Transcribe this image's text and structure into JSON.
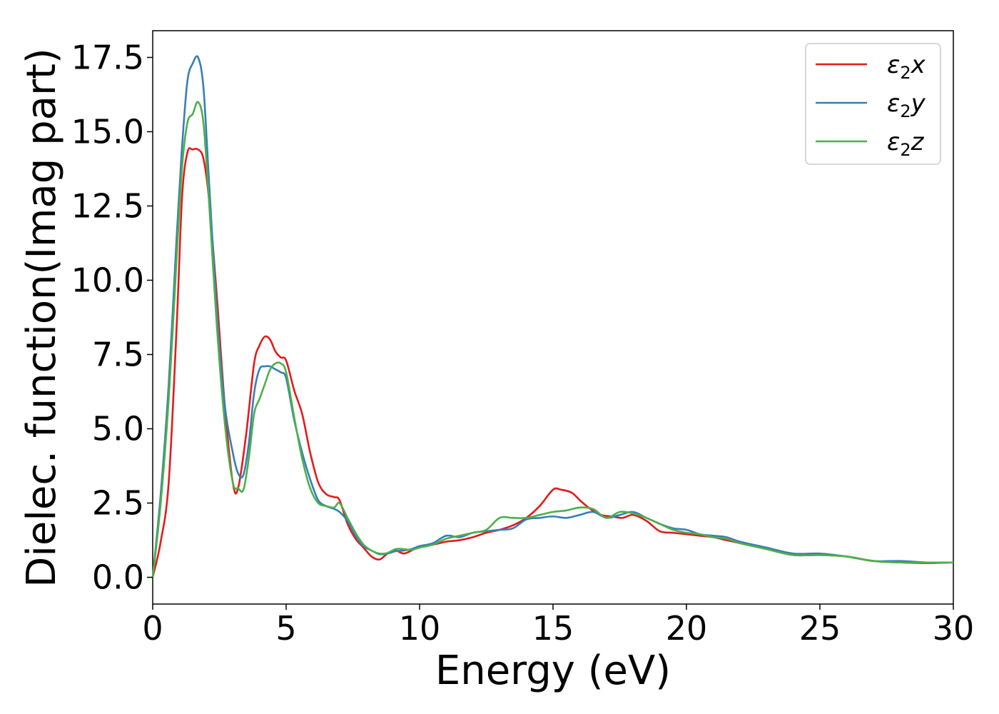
{
  "chart_data": {
    "type": "line",
    "xlabel": "Energy (eV)",
    "ylabel": "Dielec. function(Imag part)",
    "xlim": [
      0,
      30
    ],
    "ylim": [
      -0.9,
      18.4
    ],
    "xticks": [
      0,
      5,
      10,
      15,
      20,
      25,
      30
    ],
    "xtick_labels": [
      "0",
      "5",
      "10",
      "15",
      "20",
      "25",
      "30"
    ],
    "yticks": [
      0,
      2.5,
      5,
      7.5,
      10,
      12.5,
      15,
      17.5
    ],
    "ytick_labels": [
      "0.0",
      "2.5",
      "5.0",
      "7.5",
      "10.0",
      "12.5",
      "15.0",
      "17.5"
    ],
    "grid": false,
    "legend_position": "top-right",
    "series": [
      {
        "name": "ε2x",
        "legend_base": "ε",
        "legend_sub": "2",
        "legend_suffix": "x",
        "color": "#e41a1c",
        "x": [
          0,
          0.3,
          0.6,
          0.9,
          1.1,
          1.3,
          1.5,
          1.7,
          1.9,
          2.1,
          2.4,
          2.7,
          3.0,
          3.2,
          3.5,
          3.8,
          4.0,
          4.2,
          4.4,
          4.6,
          4.8,
          5.0,
          5.3,
          5.6,
          5.9,
          6.2,
          6.5,
          6.8,
          7.0,
          7.3,
          7.6,
          7.9,
          8.2,
          8.5,
          8.8,
          9.1,
          9.4,
          9.7,
          10.0,
          10.5,
          11.0,
          11.5,
          12.0,
          12.5,
          13.0,
          13.5,
          14.0,
          14.5,
          15.0,
          15.3,
          15.7,
          16.0,
          16.4,
          16.8,
          17.2,
          17.6,
          18.0,
          18.5,
          19.0,
          19.5,
          20.0,
          20.5,
          21.0,
          21.5,
          22.0,
          23.0,
          24.0,
          25.0,
          26.0,
          27.0,
          28.0,
          29.0,
          30.0
        ],
        "values": [
          0,
          1.2,
          3.2,
          8.5,
          12.8,
          14.3,
          14.4,
          14.4,
          14.1,
          12.8,
          9.5,
          5.8,
          3.2,
          3.0,
          4.8,
          7.2,
          7.8,
          8.1,
          8.0,
          7.6,
          7.4,
          7.3,
          6.3,
          5.5,
          4.2,
          3.2,
          2.8,
          2.7,
          2.6,
          1.8,
          1.3,
          1.0,
          0.7,
          0.6,
          0.8,
          0.9,
          0.8,
          0.9,
          1.05,
          1.1,
          1.2,
          1.25,
          1.35,
          1.5,
          1.6,
          1.75,
          2.0,
          2.4,
          2.95,
          2.95,
          2.85,
          2.6,
          2.3,
          2.1,
          2.05,
          2.0,
          2.1,
          1.9,
          1.55,
          1.5,
          1.45,
          1.4,
          1.35,
          1.25,
          1.15,
          0.95,
          0.75,
          0.75,
          0.7,
          0.55,
          0.5,
          0.48,
          0.5
        ]
      },
      {
        "name": "ε2y",
        "legend_base": "ε",
        "legend_sub": "2",
        "legend_suffix": "y",
        "color": "#377eb8",
        "x": [
          0,
          0.3,
          0.6,
          0.9,
          1.1,
          1.3,
          1.5,
          1.7,
          1.9,
          2.1,
          2.4,
          2.7,
          3.0,
          3.2,
          3.4,
          3.6,
          3.8,
          4.0,
          4.2,
          4.4,
          4.6,
          4.8,
          5.0,
          5.3,
          5.6,
          5.9,
          6.2,
          6.5,
          6.8,
          7.0,
          7.3,
          7.6,
          7.9,
          8.2,
          8.5,
          8.8,
          9.1,
          9.4,
          9.7,
          10.0,
          10.5,
          11.0,
          11.5,
          12.0,
          12.5,
          13.0,
          13.5,
          14.0,
          14.5,
          15.0,
          15.5,
          16.0,
          16.5,
          17.0,
          17.5,
          18.0,
          18.5,
          19.0,
          19.5,
          20.0,
          20.5,
          21.0,
          21.5,
          22.0,
          23.0,
          24.0,
          25.0,
          26.0,
          27.0,
          28.0,
          29.0,
          30.0
        ],
        "values": [
          0,
          2.8,
          6.5,
          11.5,
          14.5,
          16.7,
          17.3,
          17.5,
          16.5,
          13.5,
          9.0,
          5.8,
          4.2,
          3.5,
          3.45,
          4.5,
          6.2,
          7.0,
          7.1,
          7.1,
          7.0,
          6.9,
          6.7,
          5.3,
          4.2,
          3.3,
          2.6,
          2.4,
          2.3,
          2.2,
          1.9,
          1.4,
          1.05,
          0.9,
          0.78,
          0.8,
          0.88,
          0.9,
          0.95,
          1.05,
          1.15,
          1.4,
          1.35,
          1.5,
          1.55,
          1.6,
          1.65,
          1.95,
          2.0,
          2.05,
          2.0,
          2.1,
          2.2,
          2.0,
          2.1,
          2.2,
          2.0,
          1.8,
          1.65,
          1.6,
          1.45,
          1.4,
          1.35,
          1.2,
          1.0,
          0.8,
          0.8,
          0.7,
          0.55,
          0.55,
          0.5,
          0.5
        ]
      },
      {
        "name": "ε2z",
        "legend_base": "ε",
        "legend_sub": "2",
        "legend_suffix": "z",
        "color": "#4daf4a",
        "x": [
          0,
          0.3,
          0.6,
          0.9,
          1.1,
          1.3,
          1.5,
          1.7,
          1.9,
          2.1,
          2.4,
          2.7,
          3.0,
          3.2,
          3.4,
          3.6,
          3.8,
          4.0,
          4.2,
          4.4,
          4.6,
          4.8,
          5.0,
          5.3,
          5.6,
          5.9,
          6.2,
          6.5,
          6.8,
          7.0,
          7.3,
          7.6,
          7.9,
          8.2,
          8.5,
          8.8,
          9.1,
          9.4,
          9.7,
          10.0,
          10.5,
          11.0,
          11.5,
          12.0,
          12.5,
          13.0,
          13.5,
          14.0,
          14.5,
          15.0,
          15.5,
          16.0,
          16.5,
          17.0,
          17.5,
          18.0,
          18.5,
          19.0,
          19.5,
          20.0,
          20.5,
          21.0,
          21.5,
          22.0,
          23.0,
          24.0,
          25.0,
          26.0,
          27.0,
          28.0,
          29.0,
          30.0
        ],
        "values": [
          0,
          2.5,
          6.0,
          10.8,
          13.8,
          15.3,
          15.6,
          16.0,
          15.3,
          12.8,
          8.5,
          5.2,
          3.2,
          3.0,
          2.95,
          4.0,
          5.5,
          6.0,
          6.5,
          7.0,
          7.2,
          7.2,
          6.9,
          5.4,
          4.0,
          3.0,
          2.5,
          2.4,
          2.35,
          2.5,
          2.0,
          1.5,
          1.1,
          0.9,
          0.8,
          0.82,
          0.95,
          0.95,
          0.92,
          1.0,
          1.1,
          1.3,
          1.4,
          1.5,
          1.6,
          2.0,
          2.0,
          2.0,
          2.1,
          2.2,
          2.25,
          2.35,
          2.3,
          2.0,
          2.2,
          2.15,
          2.0,
          1.8,
          1.6,
          1.5,
          1.45,
          1.35,
          1.3,
          1.15,
          0.95,
          0.75,
          0.75,
          0.7,
          0.55,
          0.5,
          0.5,
          0.5
        ]
      }
    ]
  }
}
